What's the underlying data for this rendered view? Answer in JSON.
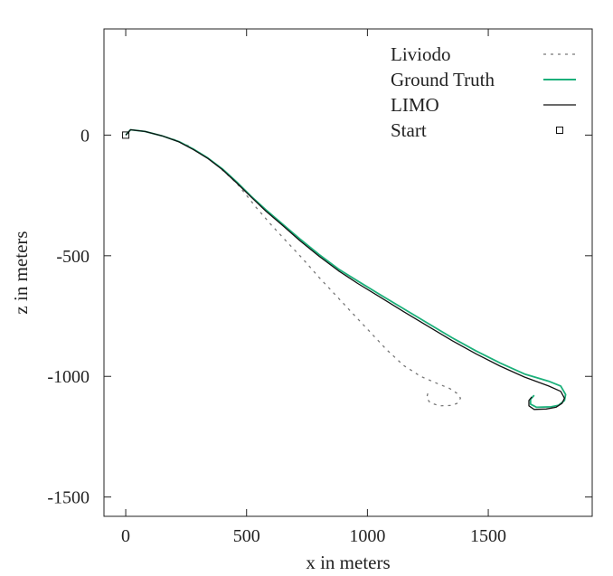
{
  "chart_data": {
    "type": "line",
    "title": "",
    "xlabel": "x in meters",
    "ylabel": "z in meters",
    "xlim": [
      -90,
      1930
    ],
    "ylim": [
      -1580,
      440
    ],
    "x_ticks": [
      {
        "value": 0,
        "label": "0"
      },
      {
        "value": 500,
        "label": "500"
      },
      {
        "value": 1000,
        "label": "1000"
      },
      {
        "value": 1500,
        "label": "1500"
      }
    ],
    "y_ticks": [
      {
        "value": 0,
        "label": "0"
      },
      {
        "value": -500,
        "label": "-500"
      },
      {
        "value": -1000,
        "label": "-1000"
      },
      {
        "value": -1500,
        "label": "-1500"
      }
    ],
    "legend_position": "top-right",
    "series": [
      {
        "name": "Liviodo",
        "style": "dashed",
        "color": "#777777",
        "points": [
          [
            0,
            0
          ],
          [
            20,
            22
          ],
          [
            80,
            15
          ],
          [
            150,
            -3
          ],
          [
            200,
            -18
          ],
          [
            260,
            -45
          ],
          [
            320,
            -82
          ],
          [
            360,
            -110
          ],
          [
            400,
            -145
          ],
          [
            430,
            -172
          ],
          [
            460,
            -200
          ],
          [
            500,
            -250
          ],
          [
            540,
            -300
          ],
          [
            600,
            -370
          ],
          [
            660,
            -435
          ],
          [
            730,
            -510
          ],
          [
            800,
            -590
          ],
          [
            870,
            -665
          ],
          [
            940,
            -740
          ],
          [
            1010,
            -815
          ],
          [
            1080,
            -890
          ],
          [
            1150,
            -955
          ],
          [
            1220,
            -1000
          ],
          [
            1290,
            -1030
          ],
          [
            1340,
            -1050
          ],
          [
            1370,
            -1070
          ],
          [
            1385,
            -1090
          ],
          [
            1375,
            -1110
          ],
          [
            1350,
            -1120
          ],
          [
            1300,
            -1122
          ],
          [
            1260,
            -1110
          ],
          [
            1245,
            -1090
          ],
          [
            1250,
            -1070
          ]
        ]
      },
      {
        "name": "Ground Truth",
        "style": "solid",
        "color": "#1bb07a",
        "points": [
          [
            0,
            0
          ],
          [
            20,
            22
          ],
          [
            80,
            15
          ],
          [
            150,
            -3
          ],
          [
            220,
            -27
          ],
          [
            280,
            -58
          ],
          [
            340,
            -95
          ],
          [
            400,
            -140
          ],
          [
            460,
            -195
          ],
          [
            520,
            -255
          ],
          [
            580,
            -310
          ],
          [
            650,
            -370
          ],
          [
            720,
            -430
          ],
          [
            800,
            -495
          ],
          [
            880,
            -555
          ],
          [
            960,
            -605
          ],
          [
            1050,
            -660
          ],
          [
            1150,
            -720
          ],
          [
            1250,
            -780
          ],
          [
            1350,
            -840
          ],
          [
            1450,
            -895
          ],
          [
            1550,
            -945
          ],
          [
            1650,
            -990
          ],
          [
            1750,
            -1020
          ],
          [
            1800,
            -1040
          ],
          [
            1820,
            -1075
          ],
          [
            1815,
            -1100
          ],
          [
            1790,
            -1120
          ],
          [
            1760,
            -1126
          ],
          [
            1700,
            -1128
          ],
          [
            1675,
            -1115
          ],
          [
            1675,
            -1095
          ],
          [
            1690,
            -1078
          ]
        ]
      },
      {
        "name": "LIMO",
        "style": "solid",
        "color": "#111111",
        "points": [
          [
            0,
            0
          ],
          [
            20,
            22
          ],
          [
            80,
            15
          ],
          [
            150,
            -3
          ],
          [
            220,
            -28
          ],
          [
            280,
            -60
          ],
          [
            340,
            -97
          ],
          [
            400,
            -143
          ],
          [
            460,
            -199
          ],
          [
            520,
            -258
          ],
          [
            580,
            -315
          ],
          [
            650,
            -375
          ],
          [
            720,
            -437
          ],
          [
            800,
            -502
          ],
          [
            880,
            -562
          ],
          [
            960,
            -615
          ],
          [
            1050,
            -670
          ],
          [
            1150,
            -732
          ],
          [
            1250,
            -792
          ],
          [
            1350,
            -852
          ],
          [
            1450,
            -907
          ],
          [
            1550,
            -958
          ],
          [
            1650,
            -1003
          ],
          [
            1750,
            -1040
          ],
          [
            1800,
            -1062
          ],
          [
            1815,
            -1090
          ],
          [
            1805,
            -1112
          ],
          [
            1780,
            -1128
          ],
          [
            1740,
            -1135
          ],
          [
            1690,
            -1137
          ],
          [
            1668,
            -1122
          ],
          [
            1668,
            -1100
          ],
          [
            1680,
            -1085
          ]
        ]
      },
      {
        "name": "Start",
        "style": "marker-square",
        "color": "#111111",
        "points": [
          [
            0,
            0
          ]
        ]
      }
    ]
  }
}
